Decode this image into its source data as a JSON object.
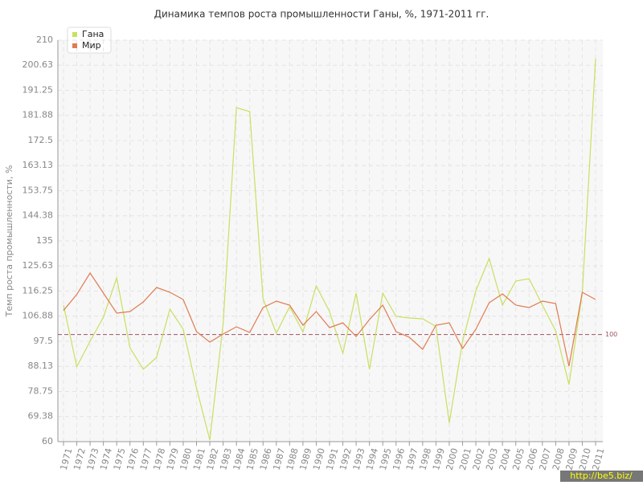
{
  "chart_data": {
    "type": "line",
    "title": "Динамика темпов роста промышленности Ганы, %, 1971-2011 гг.",
    "y_label": "Темп роста промышленности, %",
    "categories": [
      "1971",
      "1972",
      "1973",
      "1974",
      "1975",
      "1976",
      "1977",
      "1978",
      "1979",
      "1980",
      "1981",
      "1982",
      "1983",
      "1984",
      "1985",
      "1986",
      "1987",
      "1988",
      "1989",
      "1990",
      "1991",
      "1992",
      "1993",
      "1994",
      "1995",
      "1996",
      "1997",
      "1998",
      "1999",
      "2000",
      "2001",
      "2002",
      "2003",
      "2004",
      "2005",
      "2006",
      "2007",
      "2008",
      "2009",
      "2010",
      "2011"
    ],
    "series": [
      {
        "name": "Гана",
        "color": "#c8e060",
        "values": [
          111,
          88,
          97.5,
          106.5,
          121.2,
          95,
          87,
          91.5,
          109.5,
          102,
          80,
          60.6,
          104,
          184.8,
          183.3,
          113.4,
          100.5,
          110.4,
          101,
          118.2,
          108.6,
          93,
          115.5,
          87,
          115.5,
          106.8,
          106.2,
          105.9,
          103,
          67,
          97.5,
          116.4,
          128.4,
          111,
          120,
          120.9,
          111,
          101.4,
          81.3,
          115.5,
          203.1
        ]
      },
      {
        "name": "Мир",
        "color": "#e07b50",
        "values": [
          109,
          115,
          123,
          115.5,
          108,
          108.6,
          112.2,
          117.6,
          115.8,
          113.1,
          101.1,
          97.2,
          100.2,
          102.9,
          100.8,
          110.1,
          112.5,
          111,
          103.5,
          108.6,
          102.6,
          104.4,
          99.3,
          105.6,
          111,
          101.1,
          99,
          94.5,
          103.5,
          104.4,
          94.8,
          102,
          111.9,
          115.2,
          111,
          110.1,
          112.5,
          111.6,
          88.2,
          115.8,
          113.1
        ]
      }
    ],
    "ylim": [
      60,
      210
    ],
    "yticks": [
      60,
      69.38,
      78.75,
      88.13,
      97.5,
      106.88,
      116.25,
      125.63,
      135,
      144.38,
      153.75,
      163.13,
      172.5,
      181.88,
      191.25,
      200.63,
      210
    ],
    "grid": true,
    "reference_line": 100,
    "reference_color": "#a05060",
    "legend": "top-left",
    "watermark": "http://be5.biz/"
  }
}
